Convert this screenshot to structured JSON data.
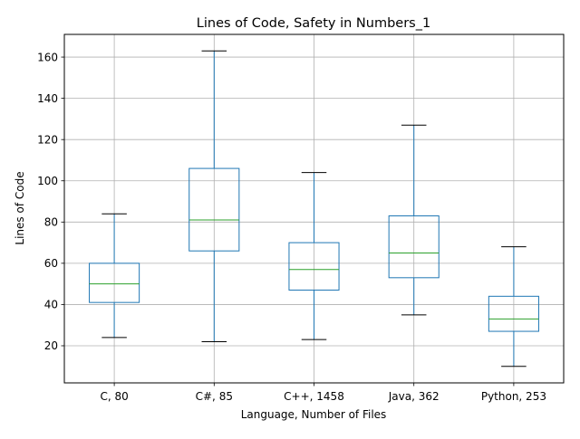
{
  "chart_data": {
    "type": "box",
    "title": "Lines of Code, Safety in Numbers_1",
    "xlabel": "Language, Number of Files",
    "ylabel": "Lines of Code",
    "ylim": [
      2,
      171
    ],
    "yticks": [
      20,
      40,
      60,
      80,
      100,
      120,
      140,
      160
    ],
    "grid": true,
    "colors": {
      "box": "#1f77b4",
      "median": "#2ca02c",
      "whisker_cap": "#000000",
      "grid": "#b0b0b0"
    },
    "categories": [
      "C, 80",
      "C#, 85",
      "C++, 1458",
      "Java, 362",
      "Python, 253"
    ],
    "boxes": [
      {
        "label": "C, 80",
        "whisker_low": 24,
        "q1": 41,
        "median": 50,
        "q3": 60,
        "whisker_high": 84
      },
      {
        "label": "C#, 85",
        "whisker_low": 22,
        "q1": 66,
        "median": 81,
        "q3": 106,
        "whisker_high": 163
      },
      {
        "label": "C++, 1458",
        "whisker_low": 23,
        "q1": 47,
        "median": 57,
        "q3": 70,
        "whisker_high": 104
      },
      {
        "label": "Java, 362",
        "whisker_low": 35,
        "q1": 53,
        "median": 65,
        "q3": 83,
        "whisker_high": 127
      },
      {
        "label": "Python, 253",
        "whisker_low": 10,
        "q1": 27,
        "median": 33,
        "q3": 44,
        "whisker_high": 68
      }
    ]
  }
}
